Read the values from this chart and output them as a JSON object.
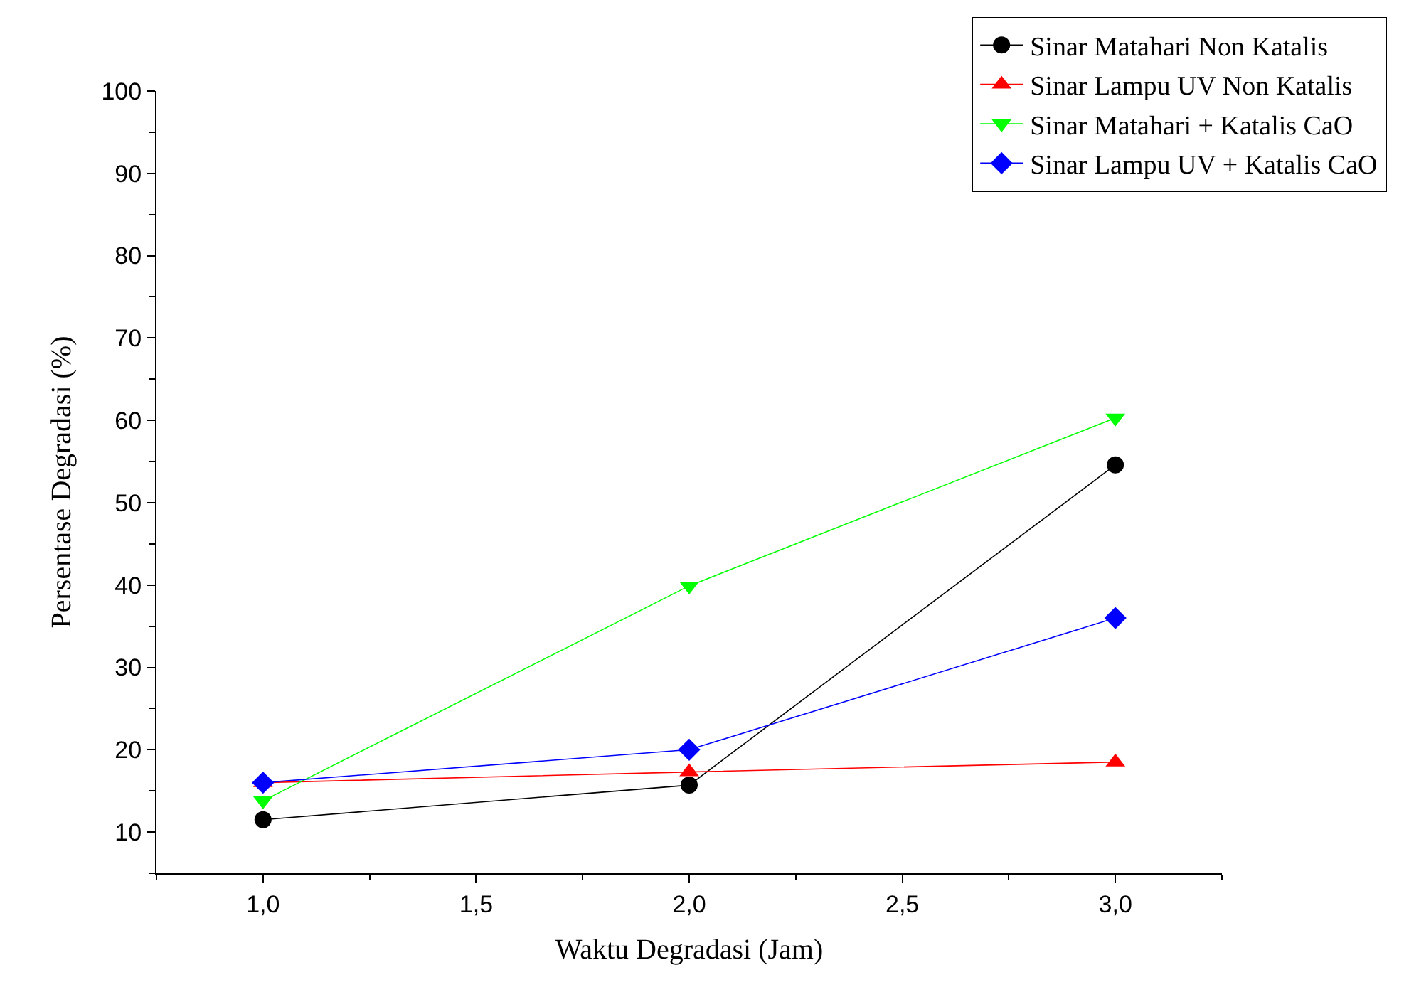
{
  "chart_data": {
    "type": "line",
    "xlabel": "Waktu Degradasi (Jam)",
    "ylabel": "Persentase Degradasi (%)",
    "x": [
      1.0,
      2.0,
      3.0
    ],
    "series": [
      {
        "name": "Sinar Matahari Non Katalis",
        "color": "#000000",
        "marker": "circle",
        "values": [
          11.5,
          15.7,
          54.6
        ]
      },
      {
        "name": "Sinar Lampu UV Non Katalis",
        "color": "#ff0000",
        "marker": "triangle",
        "values": [
          16.0,
          17.3,
          18.5
        ]
      },
      {
        "name": "Sinar Matahari + Katalis CaO",
        "color": "#00ff00",
        "marker": "triangle-down",
        "values": [
          13.8,
          39.9,
          60.3
        ]
      },
      {
        "name": "Sinar Lampu UV + Katalis CaO",
        "color": "#0000ff",
        "marker": "diamond",
        "values": [
          16.0,
          20.0,
          36.0
        ]
      }
    ],
    "xlim": [
      0.75,
      3.25
    ],
    "ylim": [
      5,
      100
    ],
    "xticks": [
      {
        "value": 1.0,
        "label": "1,0"
      },
      {
        "value": 1.5,
        "label": "1,5"
      },
      {
        "value": 2.0,
        "label": "2,0"
      },
      {
        "value": 2.5,
        "label": "2,5"
      },
      {
        "value": 3.0,
        "label": "3,0"
      }
    ],
    "yticks": [
      10,
      20,
      30,
      40,
      50,
      60,
      70,
      80,
      90,
      100
    ],
    "legend": "top right",
    "line_style": "solid"
  }
}
